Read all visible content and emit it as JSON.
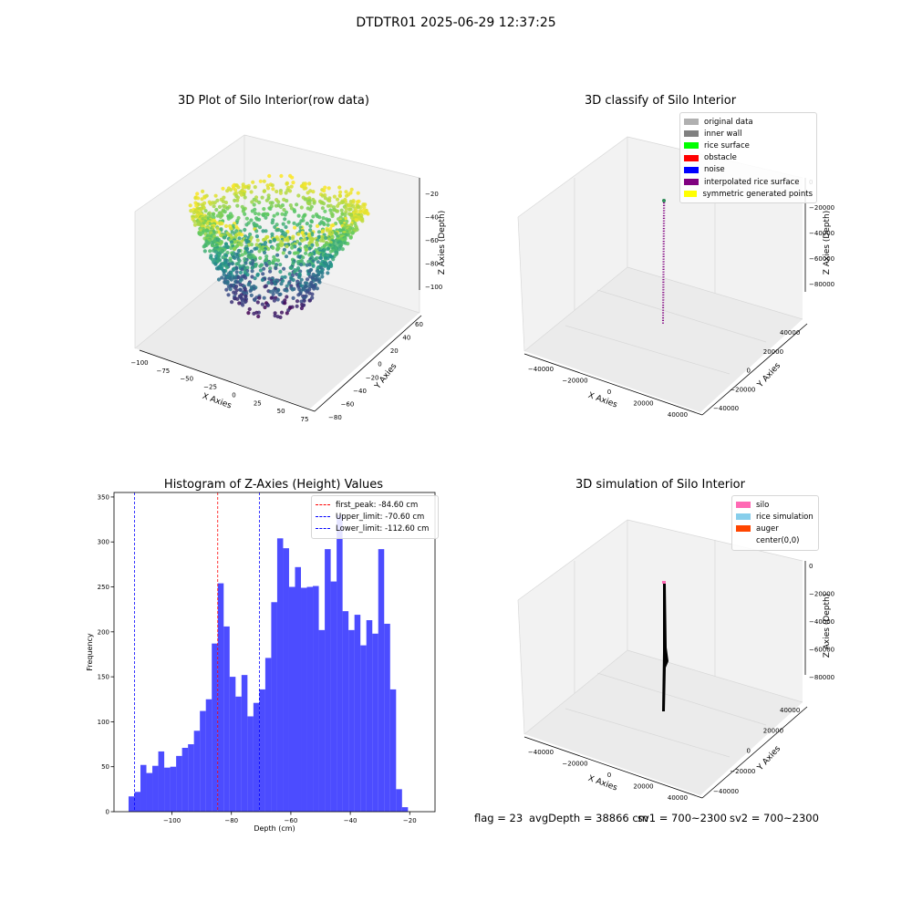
{
  "suptitle": "DTDTR01 2025-06-29 12:37:25",
  "panels": {
    "raw": {
      "title": "3D Plot of Silo Interior(row data)",
      "xlabel": "X Axies",
      "ylabel": "Y Axies",
      "zlabel": "Z Axies (Depth)",
      "xticks": [
        "−100",
        "−75",
        "−50",
        "−25",
        "0",
        "25",
        "50",
        "75"
      ],
      "yticks": [
        "−80",
        "−60",
        "−40",
        "−20",
        "0",
        "20",
        "40",
        "60"
      ],
      "zticks": [
        "−20",
        "−40",
        "−60",
        "−80",
        "−100"
      ]
    },
    "classify": {
      "title": "3D classify of Silo Interior",
      "xlabel": "X Axies",
      "ylabel": "Y Axies",
      "zlabel": "Z Axies (Depth)",
      "xticks": [
        "−40000",
        "−20000",
        "0",
        "20000",
        "40000"
      ],
      "yticks": [
        "−40000",
        "−20000",
        "0",
        "20000",
        "40000"
      ],
      "zticks": [
        "0",
        "−20000",
        "−40000",
        "−60000",
        "−80000"
      ],
      "legend": [
        {
          "label": "original data",
          "color": "#b0b0b0"
        },
        {
          "label": "inner wall",
          "color": "#808080"
        },
        {
          "label": "rice surface",
          "color": "#00ff00"
        },
        {
          "label": "obstacle",
          "color": "#ff0000"
        },
        {
          "label": "noise",
          "color": "#0000ff"
        },
        {
          "label": "interpolated rice surface",
          "color": "#800080"
        },
        {
          "label": "symmetric generated points",
          "color": "#ffff00"
        }
      ]
    },
    "simulation": {
      "title": "3D simulation of Silo Interior",
      "xlabel": "X Axies",
      "ylabel": "Y Axies",
      "zlabel": "Z Axies (Depth)",
      "xticks": [
        "−40000",
        "−20000",
        "0",
        "20000",
        "40000"
      ],
      "yticks": [
        "−40000",
        "−20000",
        "0",
        "20000",
        "40000"
      ],
      "zticks": [
        "0",
        "−20000",
        "−40000",
        "−60000",
        "−80000"
      ],
      "legend": [
        {
          "label": "silo",
          "color": "#ff69b4"
        },
        {
          "label": "rice simulation",
          "color": "#87ceeb"
        },
        {
          "label": "auger",
          "color": "#ff4500"
        },
        {
          "label": "center(0,0)",
          "color": "#ffffff"
        }
      ]
    }
  },
  "chart_data": [
    {
      "type": "histogram",
      "title": "Histogram of Z-Axies (Height) Values",
      "xlabel": "Depth (cm)",
      "ylabel": "Frequency",
      "xlim": [
        -119.5,
        -11.5
      ],
      "ylim": [
        0,
        355
      ],
      "xticks": [
        -100,
        -80,
        -60,
        -40,
        -20
      ],
      "xtick_labels": [
        "−100",
        "−80",
        "−60",
        "−40",
        "−20"
      ],
      "yticks": [
        0,
        50,
        100,
        150,
        200,
        250,
        300,
        350
      ],
      "bar_color": "#0000ff",
      "bin_start": -114.6,
      "bin_width": 2.0,
      "values": [
        17,
        22,
        52,
        43,
        51,
        67,
        49,
        50,
        62,
        71,
        75,
        90,
        112,
        125,
        187,
        254,
        206,
        150,
        128,
        152,
        106,
        121,
        136,
        171,
        233,
        304,
        293,
        250,
        272,
        249,
        250,
        251,
        202,
        292,
        256,
        330,
        223,
        202,
        219,
        185,
        213,
        198,
        292,
        209,
        136,
        25,
        5
      ],
      "lines": [
        {
          "label": "first_peak: -84.60 cm",
          "x": -84.6,
          "color": "#ff0000"
        },
        {
          "label": "Upper_limit: -70.60 cm",
          "x": -70.6,
          "color": "#0000ff"
        },
        {
          "label": "Lower_limit: -112.60 cm",
          "x": -112.6,
          "color": "#0000ff"
        }
      ]
    }
  ],
  "footer": {
    "flag": "flag = 23",
    "avg_depth": "avgDepth = 38866 cm",
    "sv1": "sv1 = 700~2300",
    "sv2": "sv2 = 700~2300"
  }
}
